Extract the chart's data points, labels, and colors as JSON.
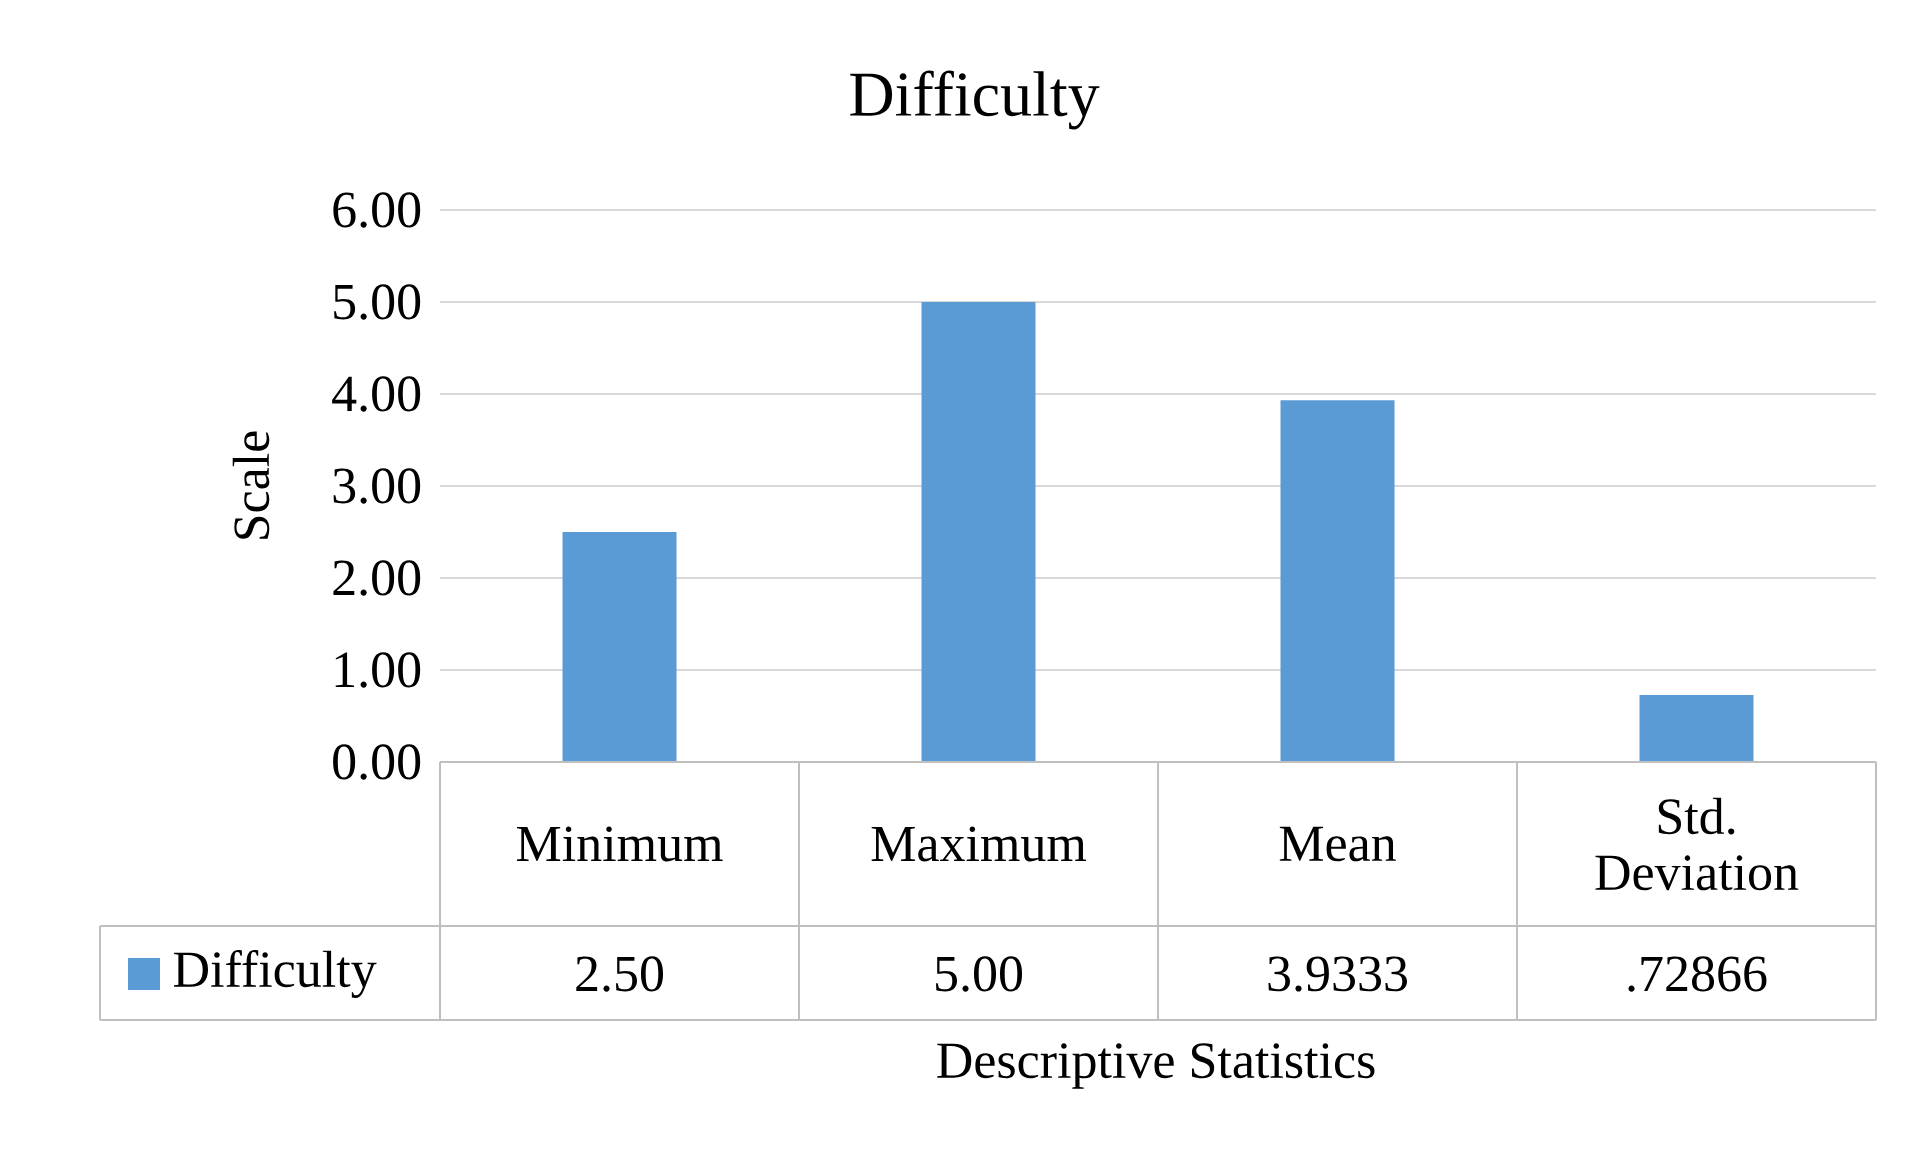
{
  "chart_data": {
    "type": "bar",
    "title": "Difficulty",
    "xlabel": "Descriptive  Statistics",
    "ylabel": "Scale",
    "categories": [
      "Minimum",
      "Maximum",
      "Mean",
      "Std. Deviation"
    ],
    "series": [
      {
        "name": "Difficulty",
        "color": "#5b9bd5",
        "values": [
          2.5,
          5,
          3.9333,
          0.72866
        ]
      }
    ],
    "value_labels": [
      "2.50",
      "5.00",
      "3.9333",
      ".72866"
    ],
    "ylim": [
      0,
      6
    ],
    "yticks": [
      {
        "value": 0,
        "label": "0.00"
      },
      {
        "value": 1,
        "label": "1.00"
      },
      {
        "value": 2,
        "label": "2.00"
      },
      {
        "value": 3,
        "label": "3.00"
      },
      {
        "value": 4,
        "label": "4.00"
      },
      {
        "value": 5,
        "label": "5.00"
      },
      {
        "value": 6,
        "label": "6.00"
      }
    ],
    "grid": "y",
    "legend": "bottom left"
  }
}
